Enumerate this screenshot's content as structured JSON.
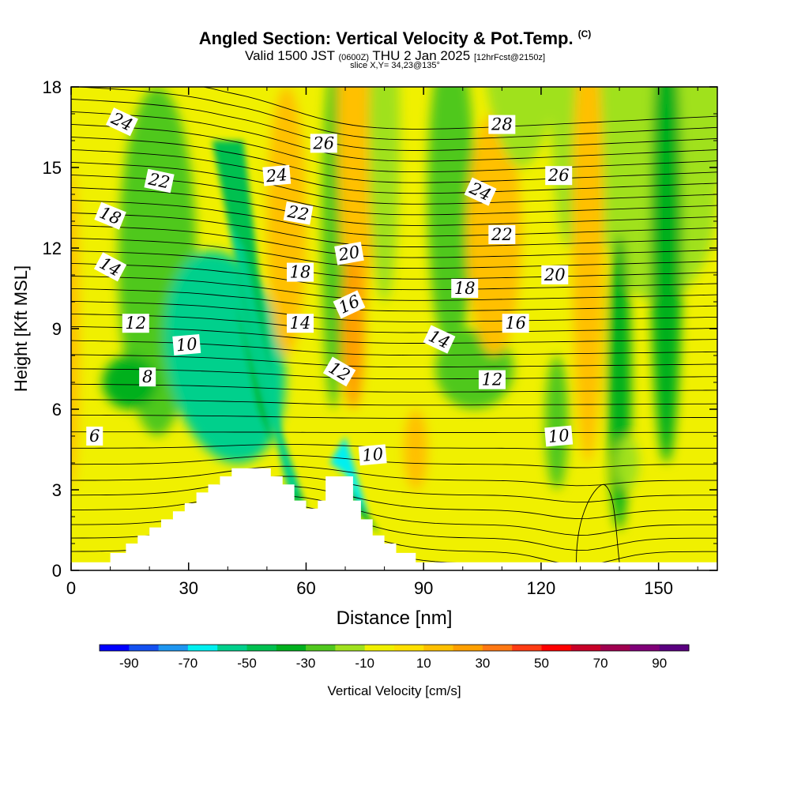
{
  "title": {
    "main": "Angled Section: Vertical Velocity & Pot.Temp.",
    "units_tag": "(C)",
    "valid_prefix": "Valid 1500 JST",
    "valid_utc": "(0600Z)",
    "valid_date": "THU 2 Jan 2025",
    "forecast": "[12hrFcst@2150z]",
    "slice": "slice X,Y= 34,23@135°"
  },
  "chart_data": {
    "type": "heatmap",
    "xlabel": "Distance [nm]",
    "ylabel": "Height [Kft MSL]",
    "xlim": [
      0,
      165
    ],
    "ylim": [
      0,
      18
    ],
    "x_ticks": [
      "0",
      "30",
      "60",
      "90",
      "120",
      "150"
    ],
    "y_ticks": [
      "0",
      "3",
      "6",
      "9",
      "12",
      "15",
      "18"
    ],
    "colorbar": {
      "label": "Vertical Velocity [cm/s]",
      "tick_labels": [
        "-90",
        "-70",
        "-50",
        "-30",
        "-10",
        "10",
        "30",
        "50",
        "70",
        "90"
      ],
      "colors": [
        "#0000ff",
        "#1450f0",
        "#1e96f0",
        "#00f0f0",
        "#00d08c",
        "#00c050",
        "#00b01e",
        "#50c81e",
        "#a0e11e",
        "#f0f000",
        "#ffe000",
        "#ffc000",
        "#ffa000",
        "#ff7814",
        "#ff3c14",
        "#ff0000",
        "#c80028",
        "#a00050",
        "#800078",
        "#5a0080"
      ],
      "range": [
        -100,
        100
      ]
    },
    "terrain_top": [
      [
        0,
        0.3
      ],
      [
        10,
        0.3
      ],
      [
        10,
        0.65
      ],
      [
        14,
        0.65
      ],
      [
        14,
        1
      ],
      [
        17,
        1
      ],
      [
        17,
        1.3
      ],
      [
        20,
        1.3
      ],
      [
        20,
        1.6
      ],
      [
        23,
        1.6
      ],
      [
        23,
        1.9
      ],
      [
        26,
        1.9
      ],
      [
        26,
        2.2
      ],
      [
        29,
        2.2
      ],
      [
        29,
        2.5
      ],
      [
        32,
        2.5
      ],
      [
        32,
        2.9
      ],
      [
        35,
        2.9
      ],
      [
        35,
        3.2
      ],
      [
        38,
        3.2
      ],
      [
        38,
        3.5
      ],
      [
        41,
        3.5
      ],
      [
        41,
        3.8
      ],
      [
        47,
        3.8
      ],
      [
        47,
        3.8
      ],
      [
        51,
        3.8
      ],
      [
        51,
        3.5
      ],
      [
        54,
        3.5
      ],
      [
        54,
        3.2
      ],
      [
        57,
        3.2
      ],
      [
        57,
        2.6
      ],
      [
        60,
        2.6
      ],
      [
        60,
        2.3
      ],
      [
        63,
        2.3
      ],
      [
        63,
        2.6
      ],
      [
        65,
        2.6
      ],
      [
        65,
        3.5
      ],
      [
        70,
        3.5
      ],
      [
        70,
        3.5
      ],
      [
        72,
        3.5
      ],
      [
        72,
        2.6
      ],
      [
        74,
        2.6
      ],
      [
        74,
        1.9
      ],
      [
        77,
        1.9
      ],
      [
        77,
        1.3
      ],
      [
        80,
        1.3
      ],
      [
        80,
        1
      ],
      [
        83,
        1
      ],
      [
        83,
        0.65
      ],
      [
        88,
        0.65
      ],
      [
        88,
        0.3
      ],
      [
        165,
        0.3
      ]
    ],
    "isentropes": [
      6,
      8,
      10,
      12,
      14,
      16,
      18,
      20,
      22,
      24,
      26,
      28
    ],
    "contour_labels": [
      {
        "text": "24",
        "x": 13,
        "y": 16.7,
        "angle": 25
      },
      {
        "text": "22",
        "x": 22.5,
        "y": 14.5,
        "angle": 12
      },
      {
        "text": "18",
        "x": 10,
        "y": 13.2,
        "angle": 22
      },
      {
        "text": "14",
        "x": 10,
        "y": 11.3,
        "angle": 28
      },
      {
        "text": "12",
        "x": 16.5,
        "y": 9.2,
        "angle": 0
      },
      {
        "text": "10",
        "x": 29.5,
        "y": 8.4,
        "angle": -5
      },
      {
        "text": "8",
        "x": 19.5,
        "y": 7.2,
        "angle": 0
      },
      {
        "text": "6",
        "x": 6,
        "y": 5,
        "angle": 0
      },
      {
        "text": "26",
        "x": 64.5,
        "y": 15.9,
        "angle": 0
      },
      {
        "text": "24",
        "x": 52.5,
        "y": 14.7,
        "angle": -5
      },
      {
        "text": "22",
        "x": 58,
        "y": 13.3,
        "angle": 10
      },
      {
        "text": "20",
        "x": 71,
        "y": 11.8,
        "angle": -10
      },
      {
        "text": "18",
        "x": 58.5,
        "y": 11.1,
        "angle": 0
      },
      {
        "text": "16",
        "x": 71,
        "y": 9.9,
        "angle": -25
      },
      {
        "text": "14",
        "x": 58.5,
        "y": 9.2,
        "angle": 0
      },
      {
        "text": "12",
        "x": 68.5,
        "y": 7.4,
        "angle": 30
      },
      {
        "text": "10",
        "x": 77,
        "y": 4.3,
        "angle": -5
      },
      {
        "text": "28",
        "x": 110,
        "y": 16.6,
        "angle": 0
      },
      {
        "text": "26",
        "x": 124.5,
        "y": 14.7,
        "angle": 0
      },
      {
        "text": "24",
        "x": 104.5,
        "y": 14.1,
        "angle": 25
      },
      {
        "text": "22",
        "x": 110,
        "y": 12.5,
        "angle": 0
      },
      {
        "text": "20",
        "x": 123.5,
        "y": 11,
        "angle": 0
      },
      {
        "text": "18",
        "x": 100.5,
        "y": 10.5,
        "angle": 0
      },
      {
        "text": "16",
        "x": 113.5,
        "y": 9.2,
        "angle": 0
      },
      {
        "text": "14",
        "x": 94,
        "y": 8.6,
        "angle": 25
      },
      {
        "text": "12",
        "x": 107.5,
        "y": 7.1,
        "angle": 0
      },
      {
        "text": "10",
        "x": 124.5,
        "y": 5,
        "angle": -5
      }
    ]
  }
}
